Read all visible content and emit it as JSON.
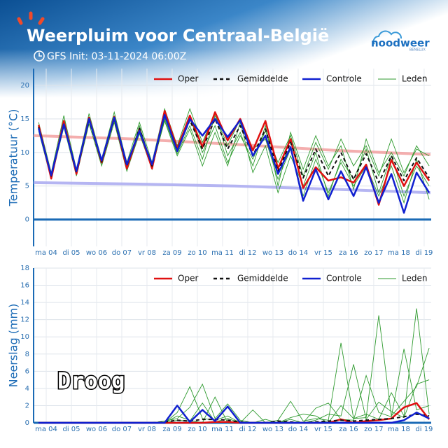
{
  "header": {
    "title": "Weerpluim voor  Centraal-België",
    "subtitle": "GFS Init: 03-11-2024 06:00Z",
    "logo": "noodweer",
    "logo_sub": "BENELUX"
  },
  "chart_data": [
    {
      "type": "line",
      "y_label": "Temperatuur (°C)",
      "x": [
        0.2,
        0.7,
        1.2,
        1.7,
        2.2,
        2.7,
        3.2,
        3.7,
        4.2,
        4.7,
        5.2,
        5.7,
        6.2,
        6.7,
        7.2,
        7.7,
        8.2,
        8.7,
        9.2,
        9.7,
        10.2,
        10.7,
        11.2,
        11.7,
        12.2,
        12.7,
        13.2,
        13.7,
        14.2,
        14.7,
        15.2,
        15.7
      ],
      "xlim": [
        0,
        15.78
      ],
      "xticks": [
        {
          "value": 0.5,
          "label": "ma 04"
        },
        {
          "value": 1.5,
          "label": "di 05"
        },
        {
          "value": 2.5,
          "label": "wo 06"
        },
        {
          "value": 3.5,
          "label": "do 07"
        },
        {
          "value": 4.5,
          "label": "vr 08"
        },
        {
          "value": 5.5,
          "label": "za 09"
        },
        {
          "value": 6.5,
          "label": "zo 10"
        },
        {
          "value": 7.5,
          "label": "ma 11"
        },
        {
          "value": 8.5,
          "label": "di 12"
        },
        {
          "value": 9.5,
          "label": "wo 13"
        },
        {
          "value": 10.5,
          "label": "do 14"
        },
        {
          "value": 11.5,
          "label": "vr 15"
        },
        {
          "value": 12.5,
          "label": "za 16"
        },
        {
          "value": 13.5,
          "label": "zo 17"
        },
        {
          "value": 14.5,
          "label": "ma 18"
        },
        {
          "value": 15.5,
          "label": "di 19"
        }
      ],
      "ylim": [
        -4,
        22.5
      ],
      "yticks": [
        0,
        5,
        10,
        15,
        20
      ],
      "grid": true,
      "reference_lines": [
        {
          "color": "#f2a0a0",
          "x": [
            0,
            4,
            8,
            12,
            15.75
          ],
          "values": [
            12.5,
            12,
            11.2,
            10.3,
            9.7
          ]
        },
        {
          "color": "#a8a8f0",
          "x": [
            0,
            4,
            8,
            12,
            15.75
          ],
          "values": [
            5.5,
            5.3,
            5,
            4.5,
            4.0
          ]
        }
      ],
      "members": {
        "name": "Leden",
        "color": "#2e9a2e",
        "series": [
          [
            14.5,
            7,
            15.5,
            7.5,
            15.8,
            9,
            16,
            8.5,
            14.5,
            8.5,
            16.5,
            11,
            16.5,
            11.5,
            16,
            9.5,
            13,
            8,
            14,
            5,
            13,
            7.5,
            12.5,
            8,
            11,
            4.5,
            12,
            7,
            10,
            6.5,
            11,
            8
          ],
          [
            13.2,
            6,
            13.8,
            6.5,
            14.3,
            8,
            14.5,
            7.2,
            12.8,
            7.5,
            15,
            9.8,
            14,
            9,
            15.5,
            11,
            15,
            10.5,
            12,
            6,
            10.5,
            3.5,
            9,
            4,
            8.5,
            5,
            8,
            3.5,
            8,
            2.5,
            9,
            3
          ],
          [
            13.9,
            6.8,
            14.5,
            7,
            15,
            8.4,
            15.5,
            7.8,
            14,
            8,
            15.8,
            10.8,
            15.2,
            10,
            14,
            8.5,
            12.5,
            9,
            13.2,
            8.5,
            12.5,
            6.5,
            11.5,
            7.5,
            12,
            8,
            11,
            6.5,
            12,
            7,
            10.5,
            9.5
          ],
          [
            14,
            6.3,
            14.2,
            7.1,
            14.9,
            8.7,
            14.8,
            7.5,
            13,
            7.8,
            14.7,
            9.5,
            13.5,
            8,
            13,
            8,
            14.5,
            7,
            11,
            4,
            9.5,
            5,
            10,
            3.5,
            9,
            6,
            10.5,
            4,
            9.5,
            3.5,
            8,
            5
          ]
        ]
      },
      "series": [
        {
          "name": "Oper",
          "color": "#e01010",
          "values": [
            14.1,
            6.1,
            14.7,
            6.8,
            15.2,
            8.5,
            15.3,
            7.6,
            13.4,
            7.6,
            16.2,
            10.6,
            15.5,
            10.8,
            16,
            11.8,
            15,
            10.3,
            14.7,
            7.6,
            12,
            4.7,
            7.8,
            5.8,
            6.3,
            5.5,
            8.2,
            2.2,
            8.9,
            5,
            8.5,
            5.8
          ]
        },
        {
          "name": "Gemiddelde",
          "color": "#111111",
          "dash": true,
          "values": [
            13.8,
            6.5,
            14.3,
            7,
            14.8,
            8.6,
            15,
            8,
            13.6,
            8,
            15.5,
            10.4,
            14.8,
            10.5,
            15,
            10.5,
            14,
            9.5,
            13.5,
            7.2,
            11.5,
            6.2,
            10.5,
            6.5,
            10,
            6,
            9.8,
            5.5,
            9.5,
            5.8,
            9.2,
            6.2
          ]
        },
        {
          "name": "Controle",
          "color": "#1020d0",
          "values": [
            13.6,
            6.6,
            14.2,
            7.2,
            15,
            8.8,
            15.2,
            8.2,
            13.2,
            8.2,
            15.6,
            10.2,
            15,
            12.5,
            15,
            12.3,
            14.8,
            9.5,
            12.5,
            6.8,
            10.8,
            2.8,
            7.5,
            3,
            7.2,
            3.5,
            7.8,
            2.5,
            6.8,
            1,
            7,
            4
          ]
        }
      ]
    },
    {
      "type": "line",
      "y_label": "Neerslag (mm)",
      "annotation": "Droog",
      "x": [
        0.2,
        0.7,
        1.2,
        1.7,
        2.2,
        2.7,
        3.2,
        3.7,
        4.2,
        4.7,
        5.2,
        5.7,
        6.2,
        6.7,
        7.2,
        7.7,
        8.2,
        8.7,
        9.2,
        9.7,
        10.2,
        10.7,
        11.2,
        11.7,
        12.2,
        12.7,
        13.2,
        13.7,
        14.2,
        14.7,
        15.2,
        15.7
      ],
      "xlim": [
        0,
        15.78
      ],
      "xticks": [
        {
          "value": 0.5,
          "label": "ma 04"
        },
        {
          "value": 1.5,
          "label": "di 05"
        },
        {
          "value": 2.5,
          "label": "wo 06"
        },
        {
          "value": 3.5,
          "label": "do 07"
        },
        {
          "value": 4.5,
          "label": "vr 08"
        },
        {
          "value": 5.5,
          "label": "za 09"
        },
        {
          "value": 6.5,
          "label": "zo 10"
        },
        {
          "value": 7.5,
          "label": "ma 11"
        },
        {
          "value": 8.5,
          "label": "di 12"
        },
        {
          "value": 9.5,
          "label": "wo 13"
        },
        {
          "value": 10.5,
          "label": "do 14"
        },
        {
          "value": 11.5,
          "label": "vr 15"
        },
        {
          "value": 12.5,
          "label": "za 16"
        },
        {
          "value": 13.5,
          "label": "zo 17"
        },
        {
          "value": 14.5,
          "label": "ma 18"
        },
        {
          "value": 15.5,
          "label": "di 19"
        }
      ],
      "ylim": [
        0,
        18
      ],
      "yticks": [
        0,
        2,
        4,
        6,
        8,
        10,
        12,
        14,
        16,
        18
      ],
      "grid": true,
      "members": {
        "name": "Leden",
        "color": "#2e9a2e",
        "series": [
          [
            0,
            0,
            0,
            0,
            0,
            0,
            0,
            0,
            0,
            0,
            0,
            1.2,
            4.2,
            0.5,
            0.3,
            0.8,
            0,
            1.5,
            0,
            0.3,
            2.5,
            0.2,
            0.5,
            0.3,
            9.3,
            0.5,
            1.0,
            0.4,
            3.5,
            0.8,
            13.3,
            1.0
          ],
          [
            0,
            0,
            0,
            0,
            0,
            0,
            0,
            0,
            0,
            0,
            0.2,
            0.5,
            1.8,
            4.5,
            0.5,
            2.2,
            0.3,
            0,
            0.4,
            0,
            0.6,
            1.0,
            0.8,
            0,
            2.0,
            0.5,
            0.6,
            12.5,
            0.8,
            2.5,
            4.2,
            8.7
          ],
          [
            0,
            0,
            0,
            0,
            0,
            0,
            0,
            0,
            0,
            0,
            0,
            0.3,
            0.2,
            2.3,
            0.1,
            0.5,
            0,
            0,
            0,
            0,
            0,
            0,
            1.7,
            2.3,
            0.4,
            0.3,
            5.5,
            1.2,
            0.7,
            8.6,
            1.5,
            2.0
          ],
          [
            0,
            0,
            0,
            0,
            0,
            0,
            0,
            0,
            0,
            0,
            0,
            0.8,
            0.3,
            0,
            3.0,
            0,
            0,
            0,
            0,
            0,
            0.4,
            0,
            0.3,
            1.0,
            0.8,
            6.8,
            0.4,
            2.4,
            1.3,
            0.6,
            4.5,
            5.0
          ]
        ]
      },
      "series": [
        {
          "name": "Oper",
          "color": "#e01010",
          "values": [
            0,
            0,
            0,
            0,
            0,
            0,
            0,
            0,
            0,
            0,
            0,
            0,
            0,
            0,
            0.1,
            0.1,
            0,
            0,
            0,
            0,
            0,
            0,
            0,
            0,
            0.4,
            0,
            0.2,
            0.3,
            0.5,
            1.8,
            2.3,
            0.4
          ]
        },
        {
          "name": "Gemiddelde",
          "color": "#111111",
          "dash": true,
          "values": [
            0,
            0,
            0,
            0,
            0,
            0,
            0,
            0,
            0,
            0,
            0.1,
            0.3,
            0.2,
            0.4,
            0.4,
            0.3,
            0.1,
            0,
            0,
            0.2,
            0.1,
            0,
            0.1,
            0.2,
            0.3,
            0.2,
            0.3,
            0.4,
            0.5,
            0.7,
            1.0,
            0.8
          ]
        },
        {
          "name": "Controle",
          "color": "#1020d0",
          "values": [
            0,
            0,
            0,
            0,
            0,
            0,
            0,
            0,
            0,
            0,
            0,
            2.0,
            0.1,
            1.5,
            0.2,
            1.9,
            0,
            0,
            0,
            0,
            0,
            0,
            0,
            0,
            0,
            0,
            0,
            0,
            0,
            0.3,
            1.2,
            0.5
          ]
        }
      ]
    }
  ]
}
